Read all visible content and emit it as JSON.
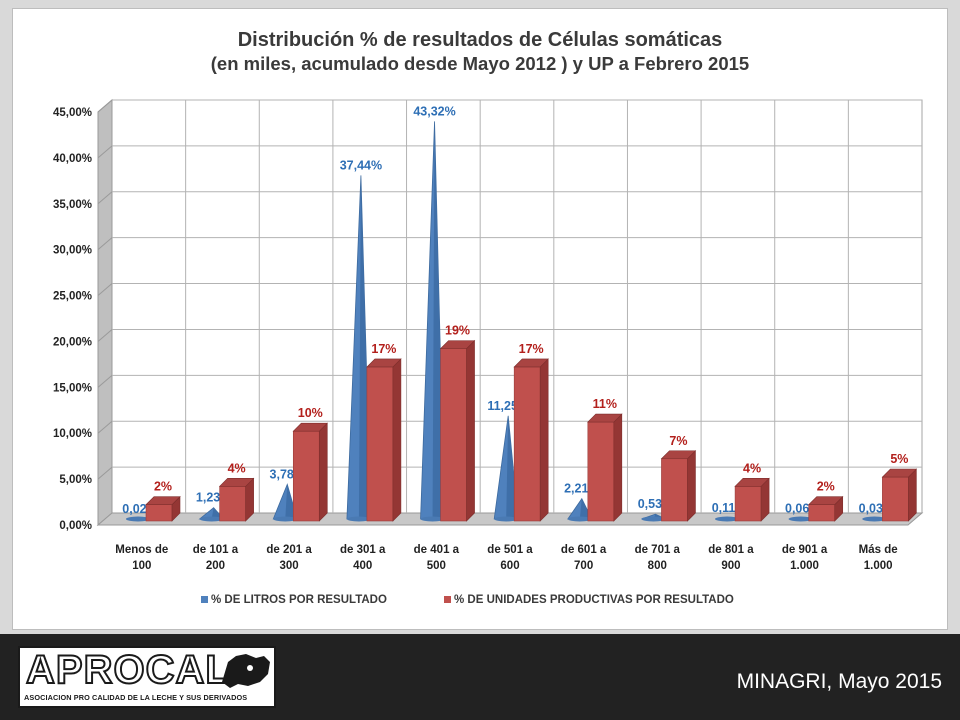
{
  "chart_data": {
    "type": "bar",
    "title": "Distribución % de resultados de Células somáticas",
    "subtitle": "(en miles, acumulado desde Mayo 2012 ) y UP a Febrero 2015",
    "categories": [
      [
        "Menos de",
        "100"
      ],
      [
        "de 101 a",
        "200"
      ],
      [
        "de 201 a",
        "300"
      ],
      [
        "de 301 a",
        "400"
      ],
      [
        "de 401 a",
        "500"
      ],
      [
        "de 501 a",
        "600"
      ],
      [
        "de 601 a",
        "700"
      ],
      [
        "de 701 a",
        "800"
      ],
      [
        "de 801 a",
        "900"
      ],
      [
        "de 901 a",
        "1.000"
      ],
      [
        "Más de",
        "1.000"
      ]
    ],
    "series": [
      {
        "name": "% DE LITROS POR RESULTADO",
        "shape": "cone",
        "color": "#4f81bd",
        "values": [
          0.02,
          1.23,
          3.78,
          37.44,
          43.32,
          11.25,
          2.21,
          0.53,
          0.11,
          0.06,
          0.03
        ],
        "labels": [
          "0,02%",
          "1,23%",
          "3,78%",
          "37,44%",
          "43,32%",
          "11,25%",
          "2,21%",
          "0,53%",
          "0,11%",
          "0,06%",
          "0,03%"
        ]
      },
      {
        "name": "% DE UNIDADES PRODUCTIVAS POR RESULTADO",
        "shape": "box",
        "color": "#c0504d",
        "values": [
          2,
          4,
          10,
          17,
          19,
          17,
          11,
          7,
          4,
          2,
          5
        ],
        "labels": [
          "2%",
          "4%",
          "10%",
          "17%",
          "19%",
          "17%",
          "11%",
          "7%",
          "4%",
          "2%",
          "5%"
        ]
      }
    ],
    "ylim": [
      0,
      45
    ],
    "yticks": [
      "0,00%",
      "5,00%",
      "10,00%",
      "15,00%",
      "20,00%",
      "25,00%",
      "30,00%",
      "35,00%",
      "40,00%",
      "45,00%"
    ],
    "grid": true,
    "legend_position": "bottom"
  },
  "footer": {
    "logo_text": "APROCAL",
    "logo_subtext": "ASOCIACION PRO CALIDAD DE LA LECHE Y SUS DERIVADOS",
    "credit": "MINAGRI, Mayo 2015"
  }
}
